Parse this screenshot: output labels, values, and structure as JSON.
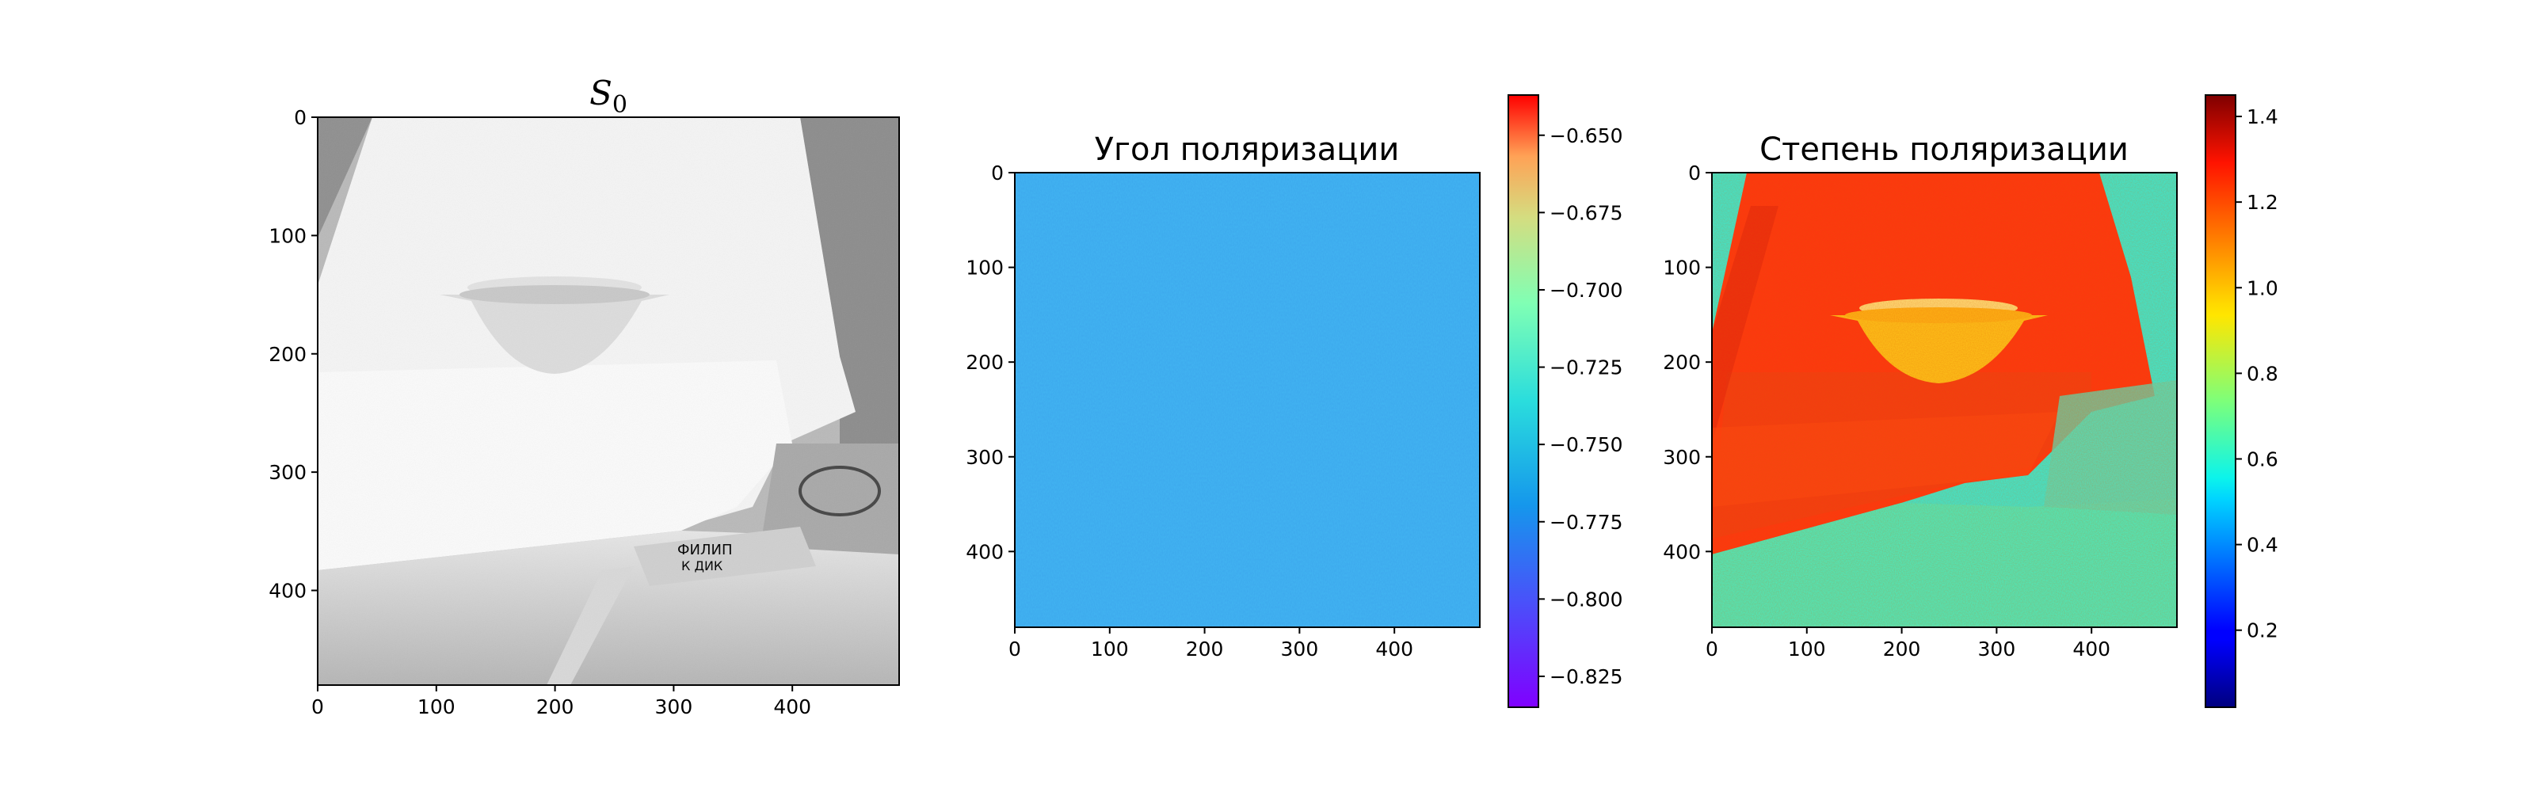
{
  "figure": {
    "background": "#ffffff"
  },
  "chart_data": [
    {
      "type": "heatmap",
      "panel": "left",
      "title_main": "S",
      "title_sub": "0",
      "colormap": "gray",
      "xlabel": "",
      "ylabel": "",
      "xlim": [
        0,
        490
      ],
      "ylim": [
        480,
        0
      ],
      "xticks": [
        0,
        100,
        200,
        300,
        400
      ],
      "yticks": [
        0,
        100,
        200,
        300,
        400
      ],
      "colorbar": null,
      "image_note": "white backdrop with bowl and sign"
    },
    {
      "type": "heatmap",
      "panel": "middle",
      "title": "Угол поляризации",
      "colormap": "rainbow",
      "xlabel": "",
      "ylabel": "",
      "xlim": [
        0,
        490
      ],
      "ylim": [
        480,
        0
      ],
      "xticks": [
        0,
        100,
        200,
        300,
        400
      ],
      "yticks": [
        0,
        100,
        200,
        300,
        400
      ],
      "dominant_value": -0.77,
      "colorbar": {
        "vmin": -0.835,
        "vmax": -0.637,
        "ticks": [
          -0.65,
          -0.675,
          -0.7,
          -0.725,
          -0.75,
          -0.775,
          -0.8,
          -0.825
        ],
        "tick_labels": [
          "−0.650",
          "−0.675",
          "−0.700",
          "−0.725",
          "−0.750",
          "−0.775",
          "−0.800",
          "−0.825"
        ]
      }
    },
    {
      "type": "heatmap",
      "panel": "right",
      "title": "Степень поляризации",
      "colormap": "jet",
      "xlabel": "",
      "ylabel": "",
      "xlim": [
        0,
        490
      ],
      "ylim": [
        480,
        0
      ],
      "xticks": [
        0,
        100,
        200,
        300,
        400
      ],
      "yticks": [
        0,
        100,
        200,
        300,
        400
      ],
      "regions": {
        "backdrop": 1.3,
        "bowl": 1.0,
        "background": 0.7
      },
      "colorbar": {
        "vmin": 0.02,
        "vmax": 1.45,
        "ticks": [
          0.2,
          0.4,
          0.6,
          0.8,
          1.0,
          1.2,
          1.4
        ],
        "tick_labels": [
          "0.2",
          "0.4",
          "0.6",
          "0.8",
          "1.0",
          "1.2",
          "1.4"
        ]
      }
    }
  ]
}
